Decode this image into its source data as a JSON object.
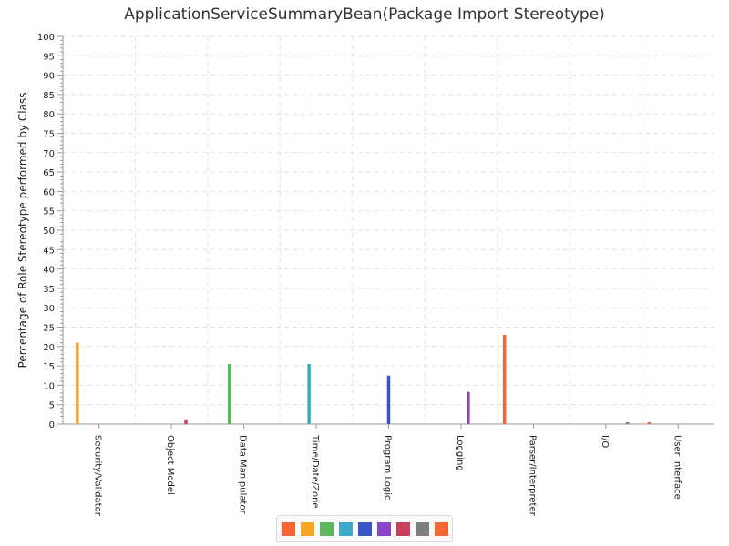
{
  "chart_data": {
    "type": "bar",
    "title": "ApplicationServiceSummaryBean(Package Import Stereotype)",
    "xlabel": "",
    "ylabel": "Percentage of Role Stereotype performed by Class",
    "ylim": [
      0,
      100
    ],
    "yticks": [
      0,
      5,
      10,
      15,
      20,
      25,
      30,
      35,
      40,
      45,
      50,
      55,
      60,
      65,
      70,
      75,
      80,
      85,
      90,
      95,
      100
    ],
    "grid": true,
    "legend_position": "bottom",
    "categories": [
      "Security/Validator",
      "Object Model",
      "Data Manipulator",
      "Time/Date/Zone",
      "Program Logic",
      "Logging",
      "Parser/Interpreter",
      "I/O",
      "User Interface"
    ],
    "series": [
      {
        "color": "#f26535",
        "values": [
          0,
          0,
          0,
          0,
          0,
          0,
          23,
          0,
          0.5
        ]
      },
      {
        "color": "#f5a623",
        "values": [
          21,
          0,
          0,
          0,
          0,
          0,
          0,
          0,
          0
        ]
      },
      {
        "color": "#5cb85c",
        "values": [
          0,
          0,
          15.5,
          0,
          0,
          0,
          0,
          0,
          0
        ]
      },
      {
        "color": "#3ea8c8",
        "values": [
          0,
          0,
          0,
          15.5,
          0,
          0,
          0,
          0,
          0
        ]
      },
      {
        "color": "#3b55c8",
        "values": [
          0,
          0,
          0,
          0,
          12.5,
          0,
          0,
          0,
          0
        ]
      },
      {
        "color": "#8e44c8",
        "values": [
          0,
          0,
          0,
          0,
          0,
          8.3,
          0,
          0,
          0
        ]
      },
      {
        "color": "#c8405a",
        "values": [
          0,
          1.2,
          0,
          0,
          0,
          0,
          0,
          0,
          0
        ]
      },
      {
        "color": "#7f7f7f",
        "values": [
          0,
          0,
          0,
          0,
          0,
          0,
          0,
          0.5,
          0
        ]
      },
      {
        "color": "#f26535",
        "values": [
          0,
          0,
          0,
          0,
          0,
          0,
          0,
          0,
          0
        ]
      }
    ]
  }
}
